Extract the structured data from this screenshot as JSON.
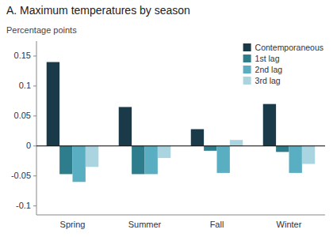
{
  "chart_data": {
    "type": "bar",
    "title": "A. Maximum temperatures  by season",
    "y_label": "Percentage points",
    "categories": [
      "Spring",
      "Summer",
      "Fall",
      "Winter"
    ],
    "series": [
      {
        "name": "Contemporaneous",
        "color": "#1a3a4a",
        "values": [
          0.14,
          0.065,
          0.028,
          0.07
        ]
      },
      {
        "name": "1st lag",
        "color": "#2e7d8c",
        "values": [
          -0.047,
          -0.047,
          -0.008,
          -0.01
        ]
      },
      {
        "name": "2nd lag",
        "color": "#5aaec2",
        "values": [
          -0.06,
          -0.047,
          -0.045,
          -0.045
        ]
      },
      {
        "name": "3rd lag",
        "color": "#aad4e0",
        "values": [
          -0.035,
          -0.02,
          0.01,
          -0.03
        ]
      }
    ],
    "ylim": [
      -0.115,
      0.175
    ],
    "yticks": [
      -0.1,
      -0.05,
      0,
      0.05,
      0.1,
      0.15
    ],
    "grid": false,
    "legend": "upper right"
  }
}
